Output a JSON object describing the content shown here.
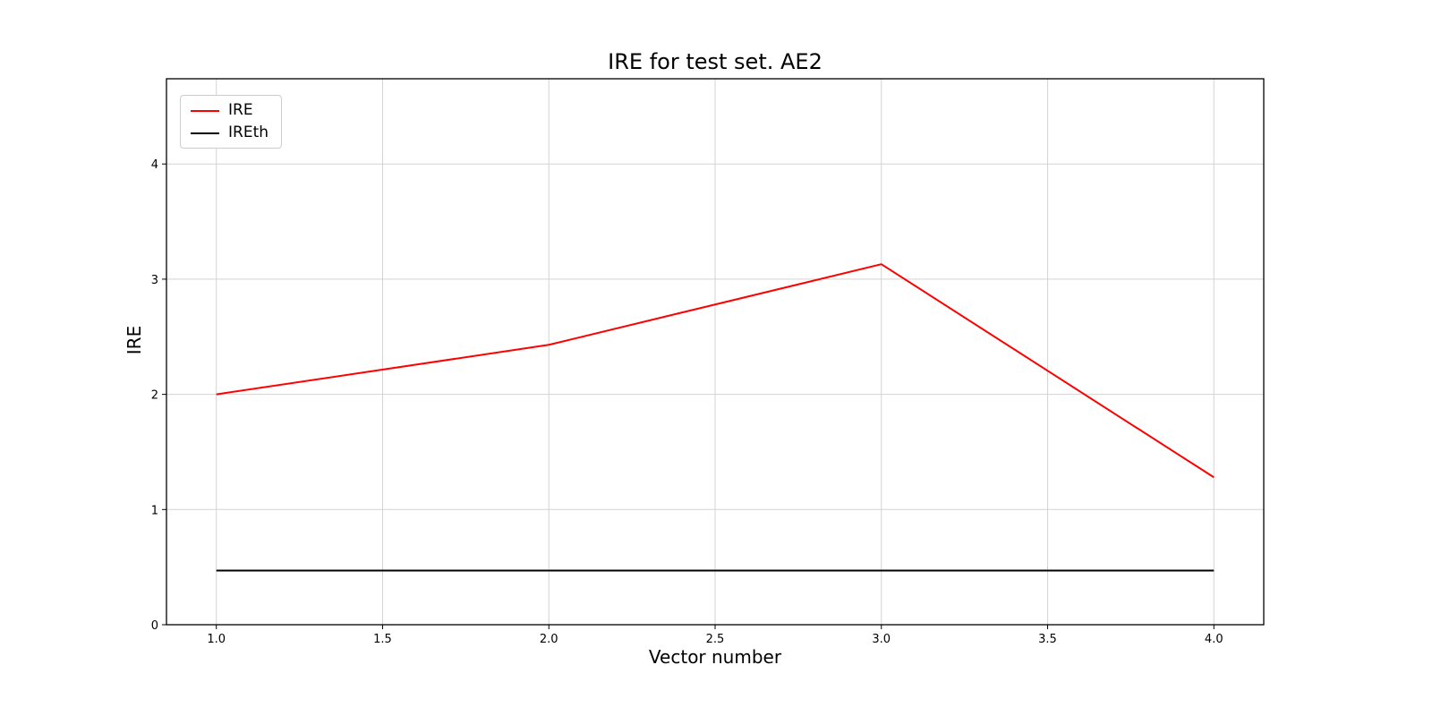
{
  "figure": {
    "background": "#ffffff"
  },
  "chart_data": {
    "type": "line",
    "title": "IRE for test set. AE2",
    "xlabel": "Vector number",
    "ylabel": "IRE",
    "xlim": [
      0.85,
      4.15
    ],
    "ylim": [
      0,
      4.74
    ],
    "xticks": [
      1.0,
      1.5,
      2.0,
      2.5,
      3.0,
      3.5,
      4.0
    ],
    "xtick_labels": [
      "1.0",
      "1.5",
      "2.0",
      "2.5",
      "3.0",
      "3.5",
      "4.0"
    ],
    "yticks": [
      0,
      1,
      2,
      3,
      4
    ],
    "ytick_labels": [
      "0",
      "1",
      "2",
      "3",
      "4"
    ],
    "grid": true,
    "grid_color": "#d3d3d3",
    "axes_color": "#000000",
    "legend_position": "upper left",
    "series": [
      {
        "name": "IRE",
        "color": "#ff0000",
        "x": [
          1,
          2,
          3,
          4
        ],
        "y": [
          2.0,
          2.43,
          3.13,
          1.28
        ]
      },
      {
        "name": "IREth",
        "color": "#000000",
        "x": [
          1,
          4
        ],
        "y": [
          0.47,
          0.47
        ]
      }
    ]
  }
}
